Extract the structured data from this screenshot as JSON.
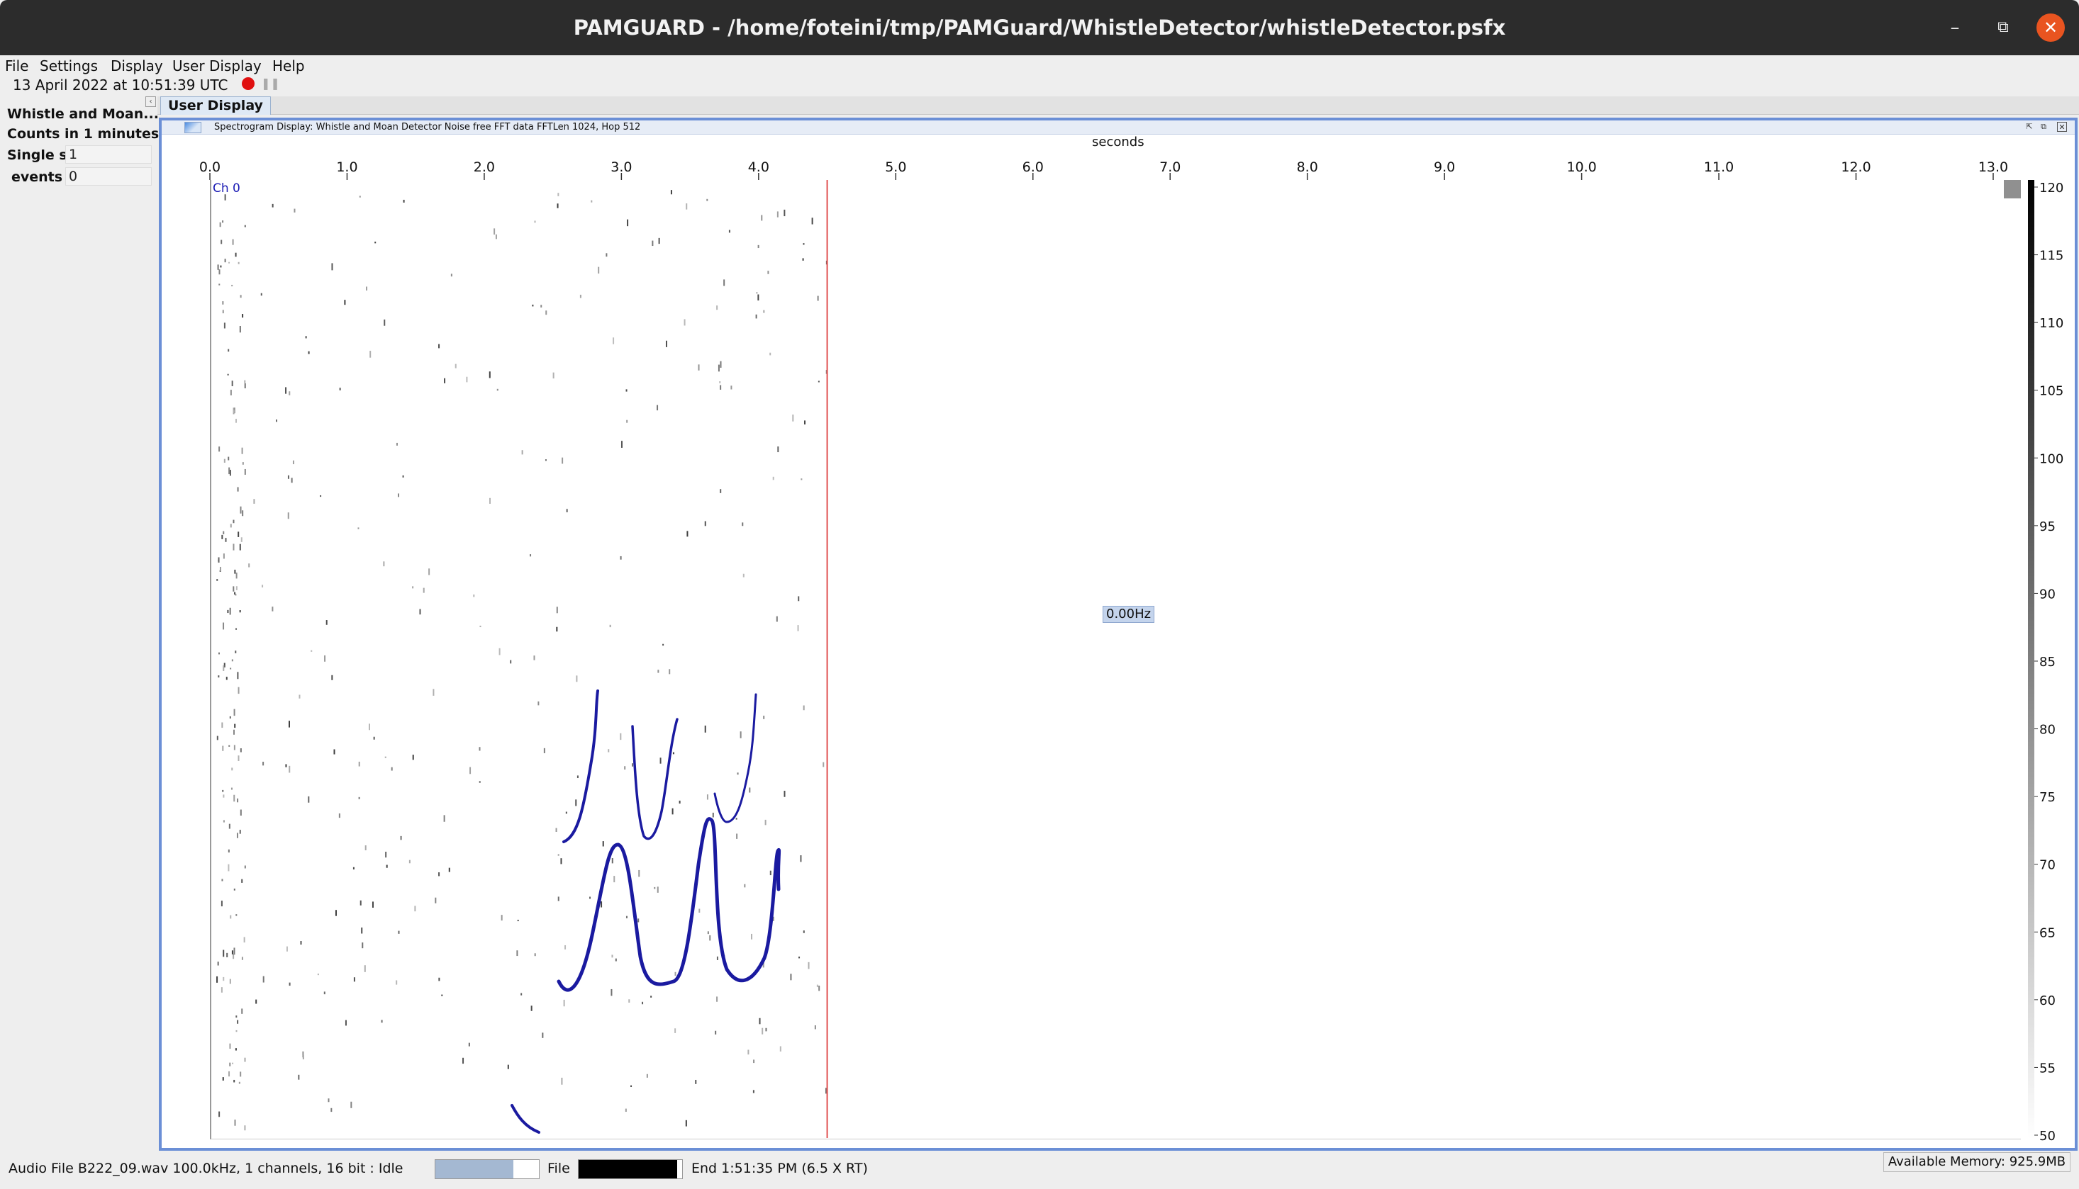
{
  "window": {
    "title": "PAMGUARD - /home/foteini/tmp/PAMGuard/WhistleDetector/whistleDetector.psfx",
    "minimize_icon": "minimize-icon",
    "maximize_icon": "maximize-icon",
    "close_icon": "close-icon"
  },
  "menu": {
    "items": [
      "File",
      "Settings",
      "Display",
      "User Display",
      "Help"
    ]
  },
  "status": {
    "clock": "13 April 2022 at 10:51:39 UTC",
    "record_color": "#e01010"
  },
  "side_panel": {
    "title": "Whistle and Moan...",
    "counts_label": "Counts in 1 minutes",
    "rows": [
      {
        "label": "Single s",
        "value": "1"
      },
      {
        "label": "events",
        "value": "0"
      }
    ]
  },
  "tabs": {
    "active": "User Display"
  },
  "spectrogram": {
    "frame_title": "Spectrogram Display: Whistle and Moan Detector Noise free FFT data FFTLen 1024, Hop 512",
    "x_axis_label": "seconds",
    "channel_label": "Ch 0",
    "frequency_readout": "0.00Hz",
    "cursor_color": "#e05050",
    "contour_color": "#1a1aa0"
  },
  "chart_data": {
    "type": "heatmap",
    "xlabel": "seconds",
    "x_ticks": [
      "0.0",
      "1.0",
      "2.0",
      "3.0",
      "4.0",
      "5.0",
      "6.0",
      "7.0",
      "8.0",
      "9.0",
      "10.0",
      "11.0",
      "12.0",
      "13.0"
    ],
    "xlim": [
      0,
      13.15
    ],
    "colorbar_ticks": [
      "120",
      "115",
      "110",
      "105",
      "100",
      "95",
      "90",
      "85",
      "80",
      "75",
      "70",
      "65",
      "60",
      "55",
      "50"
    ],
    "colorbar_range": [
      50,
      120
    ],
    "cursor_x": 4.5,
    "channel": "Ch 0"
  },
  "bottom": {
    "audio_status": "Audio File B222_09.wav 100.0kHz, 1 channels, 16 bit : Idle",
    "progress_fraction": 0.75,
    "file_label": "File",
    "file_progress_fraction": 0.95,
    "end_label": "End 1:51:35 PM (6.5 X RT)",
    "memory": "Available Memory: 925.9MB"
  }
}
